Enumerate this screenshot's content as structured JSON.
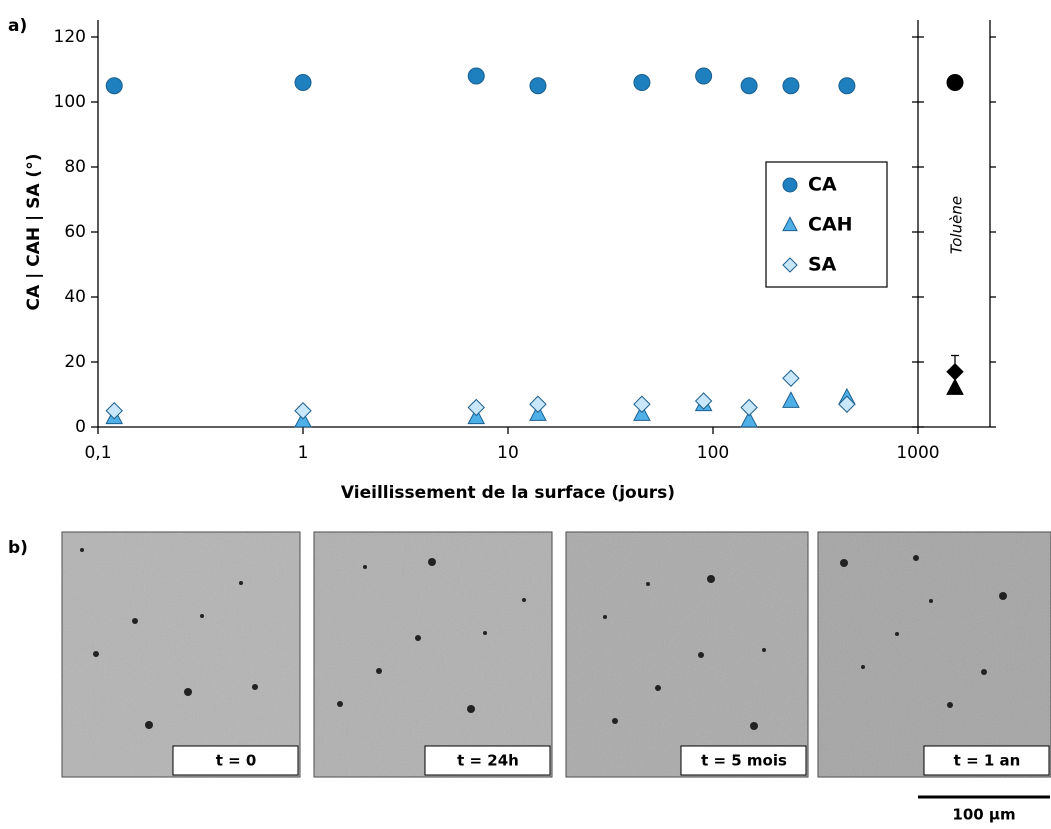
{
  "panel_labels": [
    "a)",
    "b)"
  ],
  "chart_data": {
    "type": "scatter",
    "x_label": "Vieillissement de la surface (jours)",
    "y_label": "CA | CAH | SA (°)",
    "log_x": true,
    "xlim": [
      0.1,
      1000
    ],
    "xticks": [
      {
        "value": 0.1,
        "label": "0,1"
      },
      1,
      10,
      100,
      1000
    ],
    "ylim": [
      0,
      120
    ],
    "yticks": [
      0,
      20,
      40,
      60,
      80,
      100,
      120
    ],
    "x": [
      0.12,
      1,
      7,
      14,
      45,
      90,
      150,
      240,
      450
    ],
    "series": [
      {
        "name": "CA",
        "marker": "circle",
        "color": "#1f80c0",
        "values": [
          105,
          106,
          108,
          105,
          106,
          108,
          105,
          105,
          105
        ]
      },
      {
        "name": "CAH",
        "marker": "triangle",
        "color": "#4fb0e8",
        "values": [
          3,
          2,
          3,
          4,
          4,
          7,
          2,
          8,
          9
        ]
      },
      {
        "name": "SA",
        "marker": "diamond",
        "color": "#c9e7fa",
        "values": [
          5,
          5,
          6,
          7,
          7,
          8,
          6,
          15,
          7
        ]
      }
    ],
    "reference": {
      "label": "Toluène",
      "color": "#000000",
      "values": [
        106,
        12,
        17
      ],
      "errors": [
        0,
        0,
        5
      ]
    }
  },
  "images": [
    "t = 0",
    "t = 24h",
    "t = 5 mois",
    "t = 1 an"
  ],
  "scale_bar": "100 µm"
}
